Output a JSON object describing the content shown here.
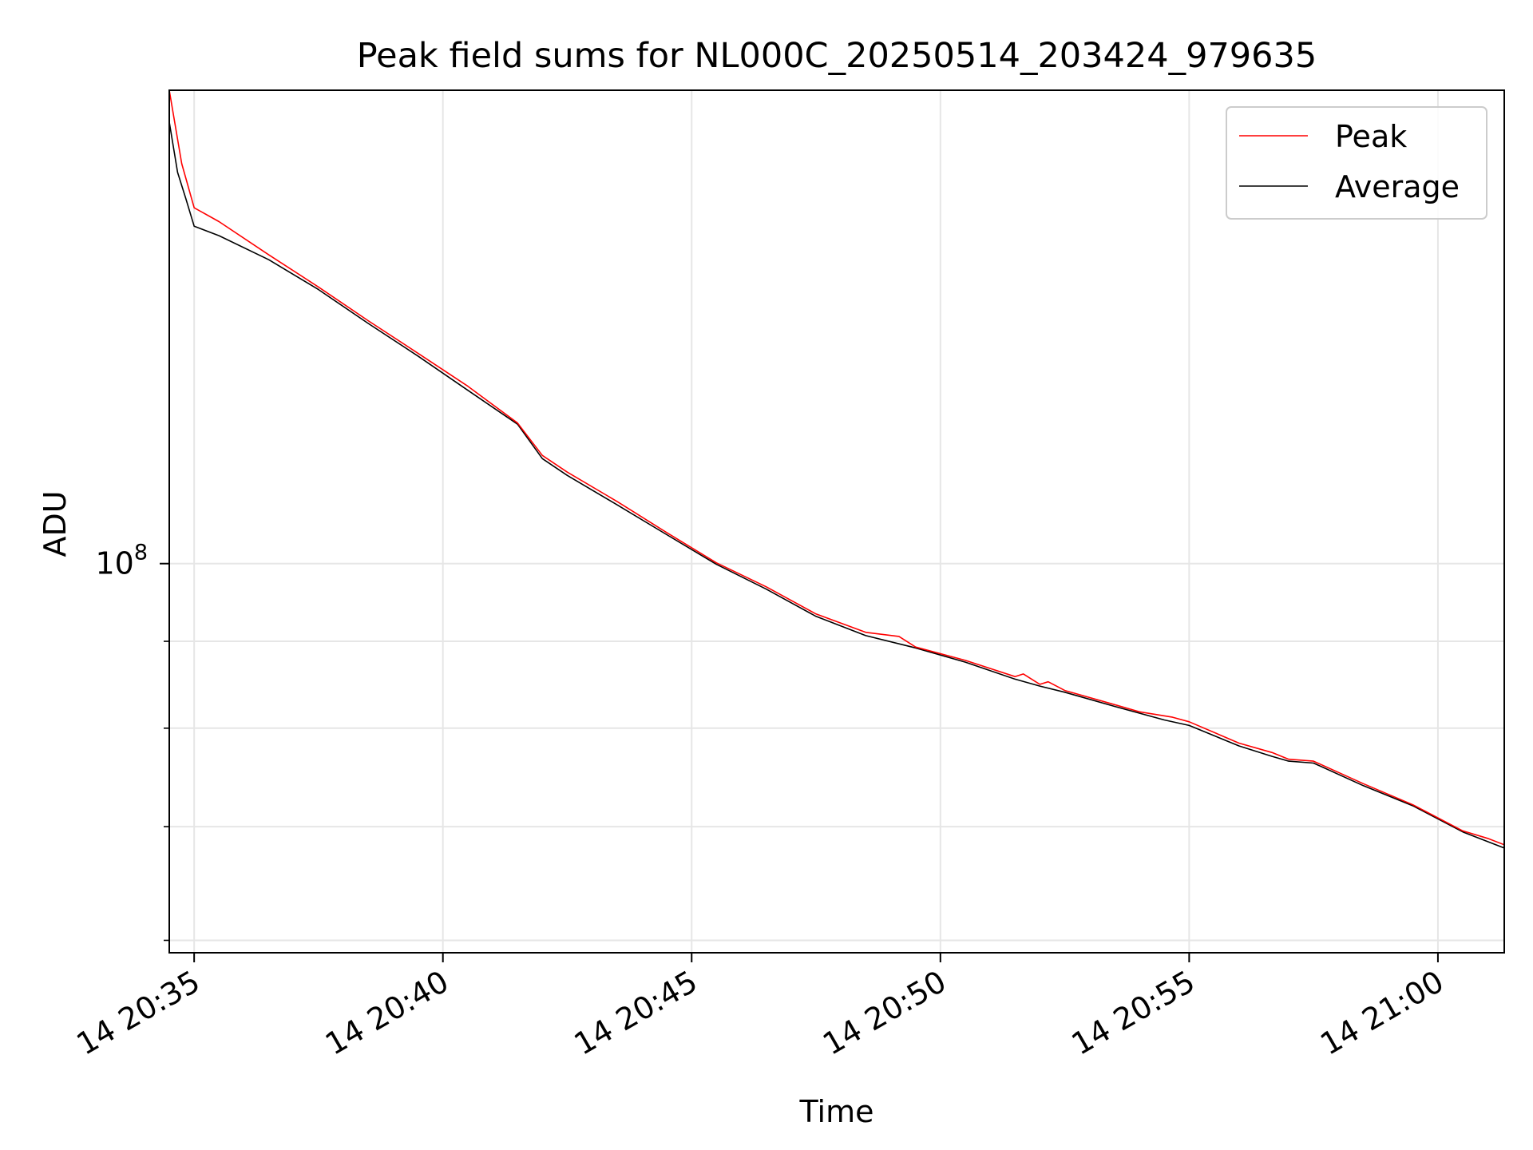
{
  "chart_data": {
    "type": "line",
    "title": "Peak field sums for NL000C_20250514_203424_979635",
    "xlabel": "Time",
    "ylabel": "ADU",
    "y_scale": "log",
    "grid": true,
    "legend_position": "top-right",
    "x_ticks": [
      "14 20:35",
      "14 20:40",
      "14 20:45",
      "14 20:50",
      "14 20:55",
      "14 21:00"
    ],
    "y_major_tick": {
      "base": "10",
      "exponent": "8"
    },
    "x_range": [
      "2025-05-14 20:34:30",
      "2025-05-14 21:01:20"
    ],
    "y_range": [
      59000000,
      190000000
    ],
    "y_minor_ticks": [
      60000000,
      70000000,
      80000000,
      90000000
    ],
    "colors": {
      "peak": "#ff0000",
      "average": "#000000",
      "grid": "#e6e6e6"
    },
    "series": [
      {
        "name": "Peak",
        "color": "#ff0000",
        "x": [
          "20:34:30",
          "20:34:45",
          "20:35:00",
          "20:35:30",
          "20:36:30",
          "20:37:30",
          "20:38:30",
          "20:39:30",
          "20:40:30",
          "20:41:30",
          "20:42:00",
          "20:42:30",
          "20:43:30",
          "20:44:30",
          "20:45:30",
          "20:46:30",
          "20:47:30",
          "20:48:30",
          "20:49:10",
          "20:49:30",
          "20:50:30",
          "20:51:30",
          "20:51:40",
          "20:52:00",
          "20:52:10",
          "20:52:30",
          "20:53:30",
          "20:54:00",
          "20:54:40",
          "20:55:00",
          "20:56:00",
          "20:56:40",
          "20:57:00",
          "20:57:30",
          "20:58:30",
          "20:59:30",
          "21:00:30",
          "21:01:00",
          "21:01:20"
        ],
        "y": [
          190000000,
          172000000,
          162000000,
          159000000,
          152000000,
          145500000,
          139000000,
          133000000,
          127200000,
          121000000,
          115800000,
          113200000,
          108800000,
          104300000,
          100100000,
          96900000,
          93400000,
          91100000,
          90600000,
          89300000,
          87700000,
          85800000,
          86100000,
          84900000,
          85200000,
          84200000,
          82600000,
          81800000,
          81200000,
          80700000,
          78400000,
          77400000,
          76700000,
          76500000,
          74200000,
          72100000,
          69600000,
          68900000,
          68300000
        ]
      },
      {
        "name": "Average",
        "color": "#000000",
        "x": [
          "20:34:30",
          "20:34:40",
          "20:34:50",
          "20:35:00",
          "20:35:30",
          "20:36:30",
          "20:37:30",
          "20:38:30",
          "20:39:30",
          "20:40:30",
          "20:41:30",
          "20:42:00",
          "20:42:30",
          "20:43:30",
          "20:44:30",
          "20:45:30",
          "20:46:30",
          "20:47:30",
          "20:48:30",
          "20:49:30",
          "20:50:30",
          "20:51:30",
          "20:52:00",
          "20:52:30",
          "20:53:30",
          "20:54:30",
          "20:55:00",
          "20:56:00",
          "20:56:40",
          "20:57:00",
          "20:57:30",
          "20:58:30",
          "20:59:30",
          "21:00:30",
          "21:01:20"
        ],
        "y": [
          182000000,
          170000000,
          164000000,
          158000000,
          156000000,
          151000000,
          145000000,
          138500000,
          132500000,
          126500000,
          120800000,
          115300000,
          112700000,
          108300000,
          104000000,
          99900000,
          96600000,
          93100000,
          90700000,
          89200000,
          87500000,
          85500000,
          84700000,
          84000000,
          82400000,
          80900000,
          80300000,
          78100000,
          77000000,
          76500000,
          76300000,
          74000000,
          72000000,
          69500000,
          68000000
        ]
      }
    ]
  }
}
